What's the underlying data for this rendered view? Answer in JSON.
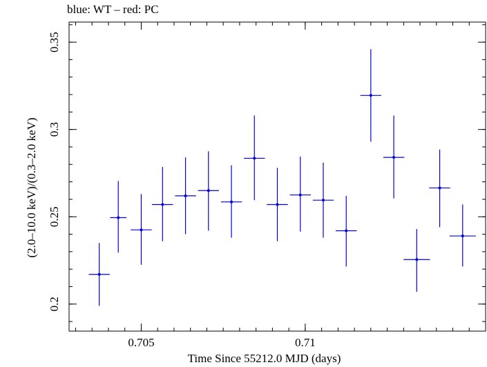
{
  "chart_data": {
    "type": "scatter",
    "title": "blue: WT – red: PC",
    "xlabel": "Time Since 55212.0 MJD (days)",
    "ylabel": "(2.0–10.0 keV)/(0.3–2.0 keV)",
    "xlim": [
      0.7028,
      0.7155
    ],
    "ylim": [
      0.1845,
      0.3615
    ],
    "xticks": [
      0.705,
      0.71
    ],
    "xtick_labels": [
      "0.705",
      "0.71"
    ],
    "yticks": [
      0.2,
      0.25,
      0.3,
      0.35
    ],
    "ytick_labels": [
      "0.2",
      "0.25",
      "0.3",
      "0.35"
    ],
    "grid": false,
    "colors": {
      "series": "#0000dd",
      "axes": "#000000"
    },
    "series": [
      {
        "points": [
          {
            "x": 0.70372,
            "y": 0.217,
            "xerr": 0.00032,
            "ylo": 0.199,
            "yhi": 0.235
          },
          {
            "x": 0.7043,
            "y": 0.2495,
            "xerr": 0.00025,
            "ylo": 0.2295,
            "yhi": 0.2705
          },
          {
            "x": 0.705,
            "y": 0.2425,
            "xerr": 0.00032,
            "ylo": 0.2225,
            "yhi": 0.263
          },
          {
            "x": 0.70565,
            "y": 0.257,
            "xerr": 0.00032,
            "ylo": 0.236,
            "yhi": 0.2785
          },
          {
            "x": 0.70635,
            "y": 0.262,
            "xerr": 0.00032,
            "ylo": 0.24,
            "yhi": 0.284
          },
          {
            "x": 0.70705,
            "y": 0.265,
            "xerr": 0.00032,
            "ylo": 0.242,
            "yhi": 0.2875
          },
          {
            "x": 0.70775,
            "y": 0.2585,
            "xerr": 0.00032,
            "ylo": 0.238,
            "yhi": 0.2795
          },
          {
            "x": 0.70845,
            "y": 0.2835,
            "xerr": 0.00032,
            "ylo": 0.2595,
            "yhi": 0.308
          },
          {
            "x": 0.70915,
            "y": 0.257,
            "xerr": 0.00032,
            "ylo": 0.236,
            "yhi": 0.278
          },
          {
            "x": 0.70985,
            "y": 0.2625,
            "xerr": 0.00032,
            "ylo": 0.2415,
            "yhi": 0.2845
          },
          {
            "x": 0.71055,
            "y": 0.2595,
            "xerr": 0.00032,
            "ylo": 0.238,
            "yhi": 0.281
          },
          {
            "x": 0.71125,
            "y": 0.242,
            "xerr": 0.00032,
            "ylo": 0.2215,
            "yhi": 0.262
          },
          {
            "x": 0.712,
            "y": 0.3195,
            "xerr": 0.00032,
            "ylo": 0.293,
            "yhi": 0.346
          },
          {
            "x": 0.7127,
            "y": 0.284,
            "xerr": 0.00032,
            "ylo": 0.2605,
            "yhi": 0.308
          },
          {
            "x": 0.7134,
            "y": 0.2255,
            "xerr": 0.0004,
            "ylo": 0.207,
            "yhi": 0.243
          },
          {
            "x": 0.7141,
            "y": 0.2665,
            "xerr": 0.00032,
            "ylo": 0.244,
            "yhi": 0.2885
          },
          {
            "x": 0.7148,
            "y": 0.239,
            "xerr": 0.0004,
            "ylo": 0.2215,
            "yhi": 0.257
          }
        ]
      }
    ]
  }
}
